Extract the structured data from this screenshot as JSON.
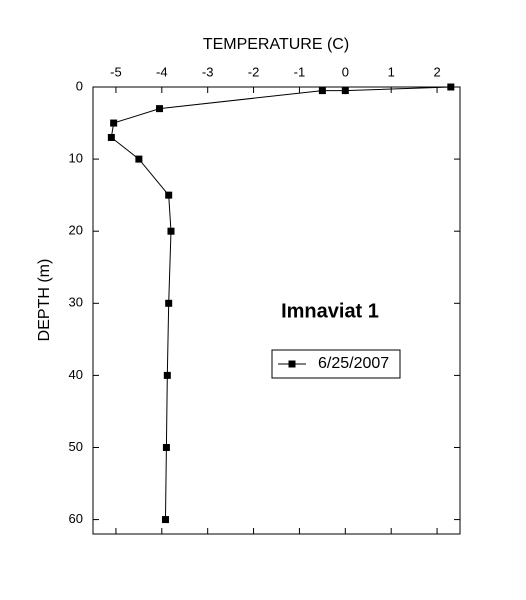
{
  "chart_data": {
    "type": "line",
    "x_label": "TEMPERATURE (C)",
    "y_label": "DEPTH (m)",
    "annotation": "Imnaviat 1",
    "x": [
      2.3,
      0.0,
      -0.5,
      -4.05,
      -5.05,
      -5.1,
      -4.5,
      -3.85,
      -3.8,
      -3.85,
      -3.88,
      -3.9,
      -3.92
    ],
    "series": [
      {
        "name": "6/25/2007",
        "color": "#000000",
        "values": [
          0,
          0.5,
          0.5,
          3,
          5,
          7,
          10,
          15,
          20,
          30,
          40,
          50,
          60
        ]
      }
    ],
    "xlim": [
      -5.5,
      2.5
    ],
    "xticks": [
      -5,
      -4,
      -3,
      -2,
      -1,
      0,
      1,
      2
    ],
    "ylim": [
      0,
      62
    ],
    "yticks": [
      0,
      10,
      20,
      30,
      40,
      50,
      60
    ],
    "y_inverted": true,
    "x_axis_position": "top",
    "grid": false,
    "legend": "center-right"
  }
}
